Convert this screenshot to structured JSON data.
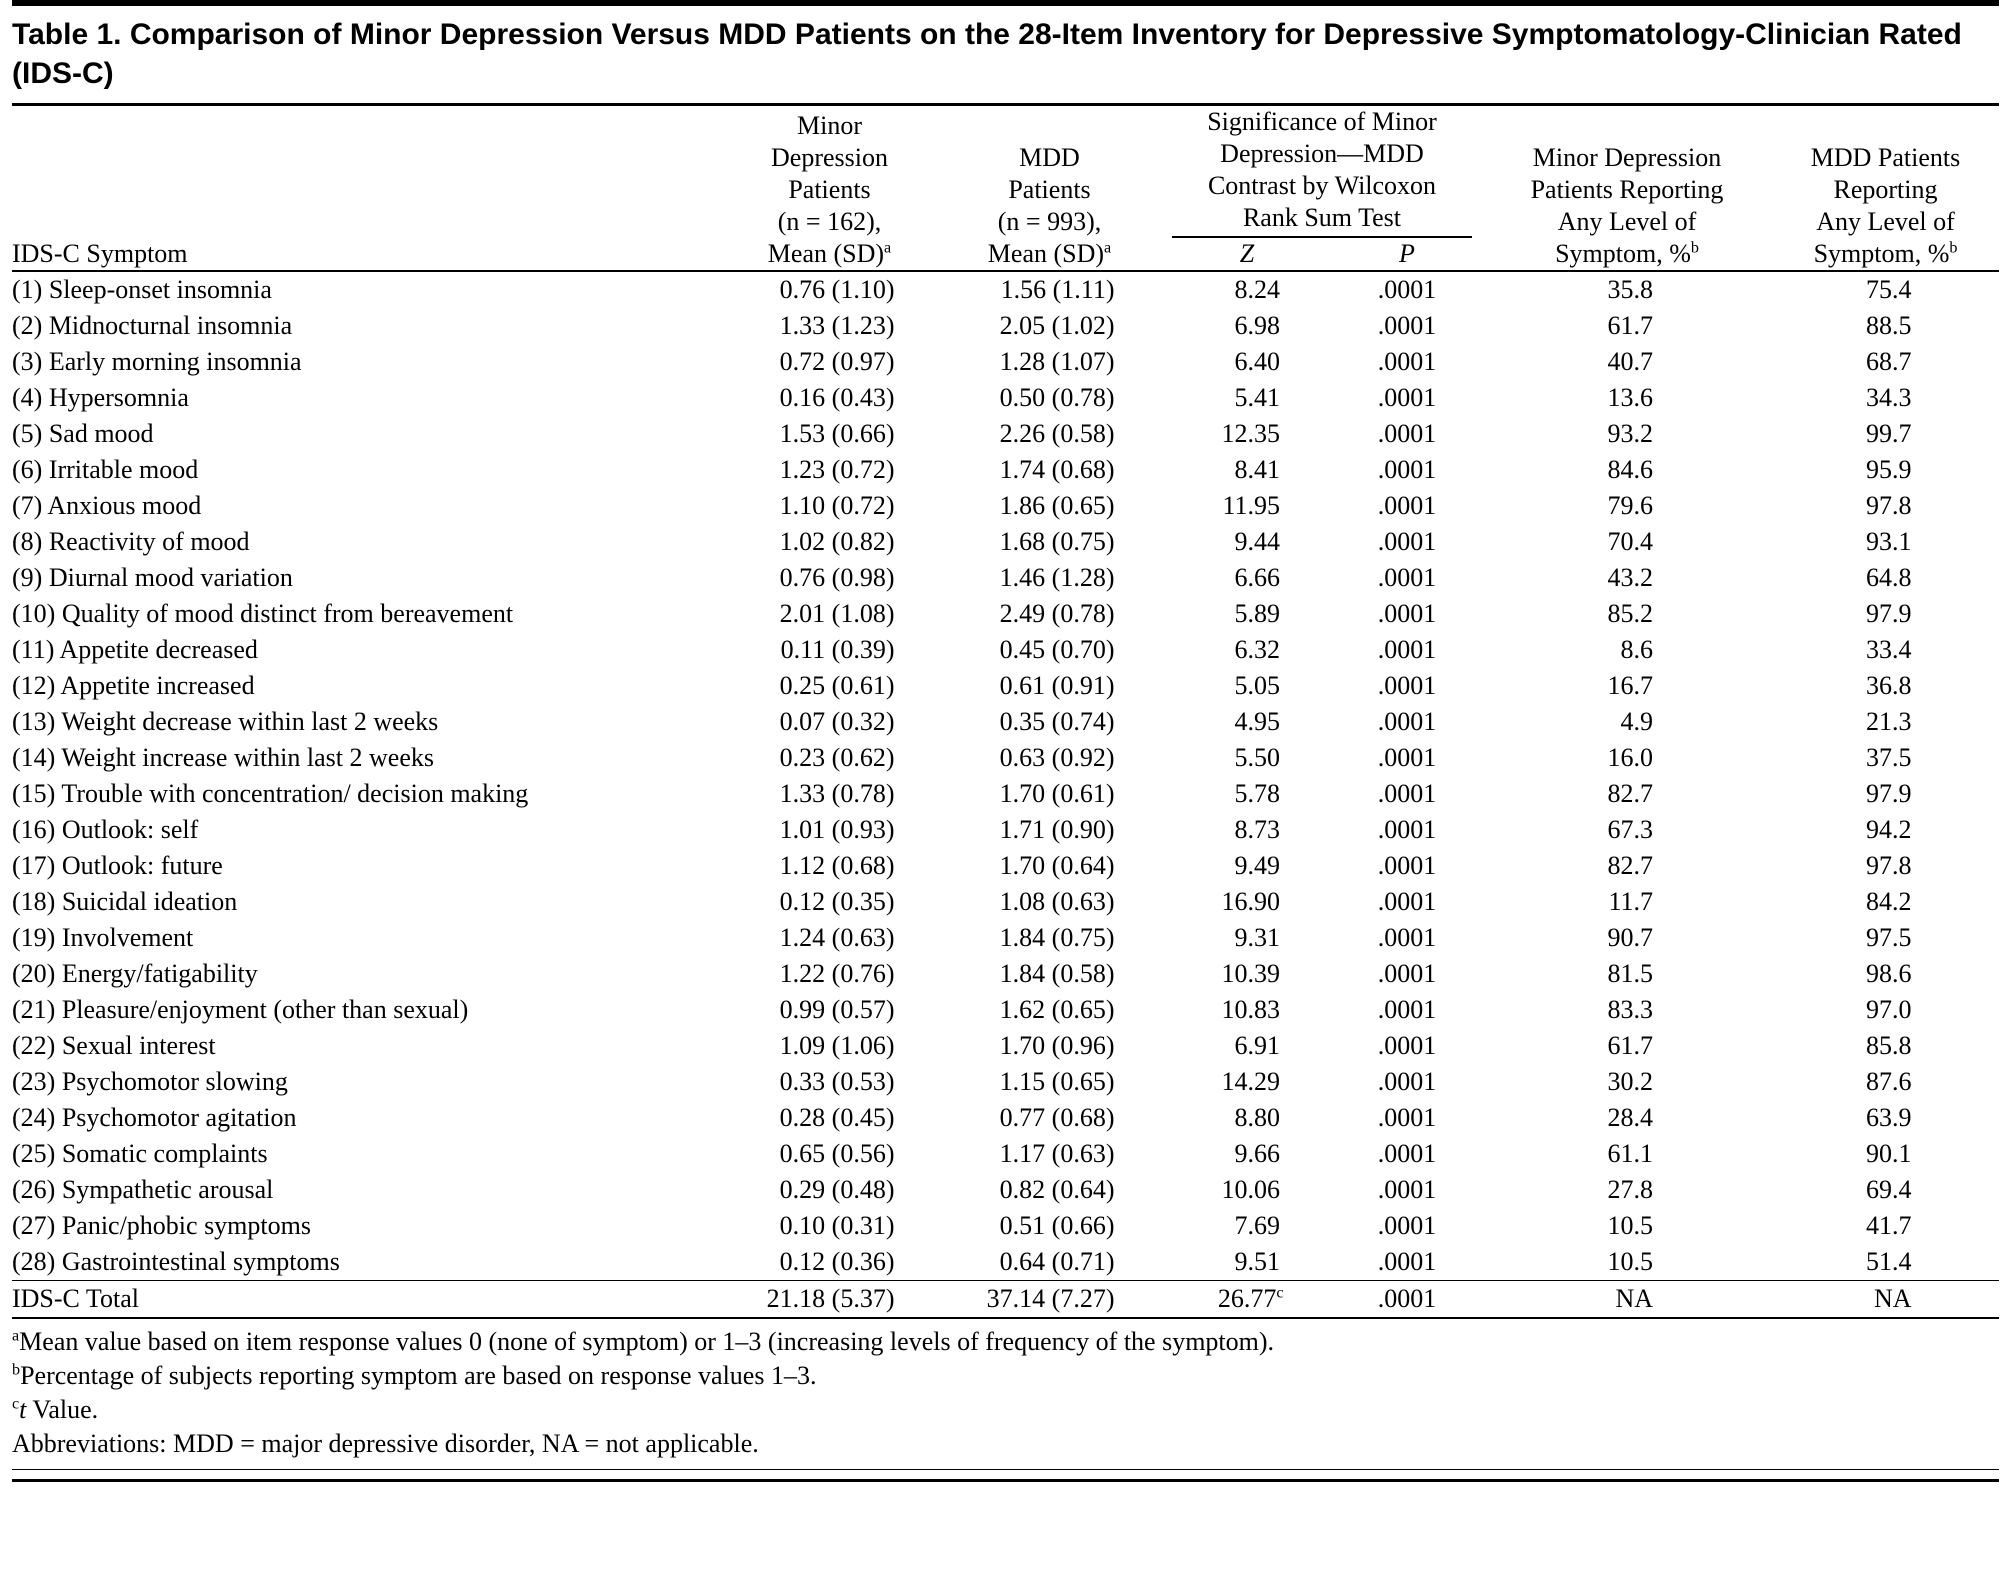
{
  "title": "Table 1. Comparison of Minor Depression Versus MDD Patients on the 28-Item Inventory for Depressive Symptomatology-Clinician Rated (IDS-C)",
  "header": {
    "symptom": "IDS-C Symptom",
    "minor_mean": {
      "lines": "Minor\nDepression\nPatients\n(n = 162),",
      "last": "Mean (SD)",
      "sup": "a"
    },
    "mdd_mean": {
      "lines": "MDD\nPatients\n(n = 993),",
      "last": "Mean (SD)",
      "sup": "a"
    },
    "significance": {
      "lines": "Significance of Minor\nDepression—MDD\nContrast by Wilcoxon\nRank Sum Test",
      "z": "Z",
      "p": "P"
    },
    "minor_pct": {
      "lines": "Minor Depression\nPatients Reporting\nAny Level of",
      "last": "Symptom, %",
      "sup": "b"
    },
    "mdd_pct": {
      "lines": "MDD Patients\nReporting\nAny Level of",
      "last": "Symptom, %",
      "sup": "b"
    }
  },
  "rows": [
    {
      "symptom": "(1) Sleep-onset insomnia",
      "minor_mean": "0.76 (1.10)",
      "mdd_mean": "1.56 (1.11)",
      "z": "8.24",
      "p": ".0001",
      "minor_pct": "35.8",
      "mdd_pct": "75.4"
    },
    {
      "symptom": "(2) Midnocturnal insomnia",
      "minor_mean": "1.33 (1.23)",
      "mdd_mean": "2.05 (1.02)",
      "z": "6.98",
      "p": ".0001",
      "minor_pct": "61.7",
      "mdd_pct": "88.5"
    },
    {
      "symptom": "(3) Early morning insomnia",
      "minor_mean": "0.72 (0.97)",
      "mdd_mean": "1.28 (1.07)",
      "z": "6.40",
      "p": ".0001",
      "minor_pct": "40.7",
      "mdd_pct": "68.7"
    },
    {
      "symptom": "(4) Hypersomnia",
      "minor_mean": "0.16 (0.43)",
      "mdd_mean": "0.50 (0.78)",
      "z": "5.41",
      "p": ".0001",
      "minor_pct": "13.6",
      "mdd_pct": "34.3"
    },
    {
      "symptom": "(5) Sad mood",
      "minor_mean": "1.53 (0.66)",
      "mdd_mean": "2.26 (0.58)",
      "z": "12.35",
      "p": ".0001",
      "minor_pct": "93.2",
      "mdd_pct": "99.7"
    },
    {
      "symptom": "(6) Irritable mood",
      "minor_mean": "1.23 (0.72)",
      "mdd_mean": "1.74 (0.68)",
      "z": "8.41",
      "p": ".0001",
      "minor_pct": "84.6",
      "mdd_pct": "95.9"
    },
    {
      "symptom": "(7) Anxious mood",
      "minor_mean": "1.10 (0.72)",
      "mdd_mean": "1.86 (0.65)",
      "z": "11.95",
      "p": ".0001",
      "minor_pct": "79.6",
      "mdd_pct": "97.8"
    },
    {
      "symptom": "(8) Reactivity of mood",
      "minor_mean": "1.02 (0.82)",
      "mdd_mean": "1.68 (0.75)",
      "z": "9.44",
      "p": ".0001",
      "minor_pct": "70.4",
      "mdd_pct": "93.1"
    },
    {
      "symptom": "(9) Diurnal mood variation",
      "minor_mean": "0.76 (0.98)",
      "mdd_mean": "1.46 (1.28)",
      "z": "6.66",
      "p": ".0001",
      "minor_pct": "43.2",
      "mdd_pct": "64.8"
    },
    {
      "symptom": "(10) Quality of mood distinct from bereavement",
      "minor_mean": "2.01 (1.08)",
      "mdd_mean": "2.49 (0.78)",
      "z": "5.89",
      "p": ".0001",
      "minor_pct": "85.2",
      "mdd_pct": "97.9"
    },
    {
      "symptom": "(11) Appetite decreased",
      "minor_mean": "0.11 (0.39)",
      "mdd_mean": "0.45 (0.70)",
      "z": "6.32",
      "p": ".0001",
      "minor_pct": "8.6",
      "mdd_pct": "33.4"
    },
    {
      "symptom": "(12) Appetite increased",
      "minor_mean": "0.25 (0.61)",
      "mdd_mean": "0.61 (0.91)",
      "z": "5.05",
      "p": ".0001",
      "minor_pct": "16.7",
      "mdd_pct": "36.8"
    },
    {
      "symptom": "(13) Weight decrease within last 2 weeks",
      "minor_mean": "0.07 (0.32)",
      "mdd_mean": "0.35 (0.74)",
      "z": "4.95",
      "p": ".0001",
      "minor_pct": "4.9",
      "mdd_pct": "21.3"
    },
    {
      "symptom": "(14) Weight increase within last 2 weeks",
      "minor_mean": "0.23 (0.62)",
      "mdd_mean": "0.63 (0.92)",
      "z": "5.50",
      "p": ".0001",
      "minor_pct": "16.0",
      "mdd_pct": "37.5"
    },
    {
      "symptom": "(15) Trouble with concentration/ decision making",
      "minor_mean": "1.33 (0.78)",
      "mdd_mean": "1.70 (0.61)",
      "z": "5.78",
      "p": ".0001",
      "minor_pct": "82.7",
      "mdd_pct": "97.9"
    },
    {
      "symptom": "(16) Outlook: self",
      "minor_mean": "1.01 (0.93)",
      "mdd_mean": "1.71 (0.90)",
      "z": "8.73",
      "p": ".0001",
      "minor_pct": "67.3",
      "mdd_pct": "94.2"
    },
    {
      "symptom": "(17) Outlook: future",
      "minor_mean": "1.12 (0.68)",
      "mdd_mean": "1.70 (0.64)",
      "z": "9.49",
      "p": ".0001",
      "minor_pct": "82.7",
      "mdd_pct": "97.8"
    },
    {
      "symptom": "(18) Suicidal ideation",
      "minor_mean": "0.12 (0.35)",
      "mdd_mean": "1.08 (0.63)",
      "z": "16.90",
      "p": ".0001",
      "minor_pct": "11.7",
      "mdd_pct": "84.2"
    },
    {
      "symptom": "(19) Involvement",
      "minor_mean": "1.24 (0.63)",
      "mdd_mean": "1.84 (0.75)",
      "z": "9.31",
      "p": ".0001",
      "minor_pct": "90.7",
      "mdd_pct": "97.5"
    },
    {
      "symptom": "(20) Energy/fatigability",
      "minor_mean": "1.22 (0.76)",
      "mdd_mean": "1.84 (0.58)",
      "z": "10.39",
      "p": ".0001",
      "minor_pct": "81.5",
      "mdd_pct": "98.6"
    },
    {
      "symptom": "(21) Pleasure/enjoyment (other than sexual)",
      "minor_mean": "0.99 (0.57)",
      "mdd_mean": "1.62 (0.65)",
      "z": "10.83",
      "p": ".0001",
      "minor_pct": "83.3",
      "mdd_pct": "97.0"
    },
    {
      "symptom": "(22) Sexual interest",
      "minor_mean": "1.09 (1.06)",
      "mdd_mean": "1.70 (0.96)",
      "z": "6.91",
      "p": ".0001",
      "minor_pct": "61.7",
      "mdd_pct": "85.8"
    },
    {
      "symptom": "(23) Psychomotor slowing",
      "minor_mean": "0.33 (0.53)",
      "mdd_mean": "1.15 (0.65)",
      "z": "14.29",
      "p": ".0001",
      "minor_pct": "30.2",
      "mdd_pct": "87.6"
    },
    {
      "symptom": "(24) Psychomotor agitation",
      "minor_mean": "0.28 (0.45)",
      "mdd_mean": "0.77 (0.68)",
      "z": "8.80",
      "p": ".0001",
      "minor_pct": "28.4",
      "mdd_pct": "63.9"
    },
    {
      "symptom": "(25) Somatic complaints",
      "minor_mean": "0.65 (0.56)",
      "mdd_mean": "1.17 (0.63)",
      "z": "9.66",
      "p": ".0001",
      "minor_pct": "61.1",
      "mdd_pct": "90.1"
    },
    {
      "symptom": "(26) Sympathetic arousal",
      "minor_mean": "0.29 (0.48)",
      "mdd_mean": "0.82 (0.64)",
      "z": "10.06",
      "p": ".0001",
      "minor_pct": "27.8",
      "mdd_pct": "69.4"
    },
    {
      "symptom": "(27) Panic/phobic symptoms",
      "minor_mean": "0.10 (0.31)",
      "mdd_mean": "0.51 (0.66)",
      "z": "7.69",
      "p": ".0001",
      "minor_pct": "10.5",
      "mdd_pct": "41.7"
    },
    {
      "symptom": "(28) Gastrointestinal symptoms",
      "minor_mean": "0.12 (0.36)",
      "mdd_mean": "0.64 (0.71)",
      "z": "9.51",
      "p": ".0001",
      "minor_pct": "10.5",
      "mdd_pct": "51.4"
    }
  ],
  "total_row": {
    "symptom": "IDS-C Total",
    "minor_mean": "21.18 (5.37)",
    "mdd_mean": "37.14 (7.27)",
    "z": "26.77",
    "z_sup": "c",
    "p": ".0001",
    "minor_pct": "NA",
    "mdd_pct": "NA"
  },
  "footnotes": [
    {
      "sup": "a",
      "text": "Mean value based on item response values 0 (none of symptom) or 1–3 (increasing levels of frequency of the symptom)."
    },
    {
      "sup": "b",
      "text": "Percentage of subjects reporting symptom are based on response values 1–3."
    },
    {
      "sup": "c",
      "italic": "t",
      "text": " Value."
    },
    {
      "sup": "",
      "text": "Abbreviations: MDD = major depressive disorder, NA = not applicable."
    }
  ]
}
